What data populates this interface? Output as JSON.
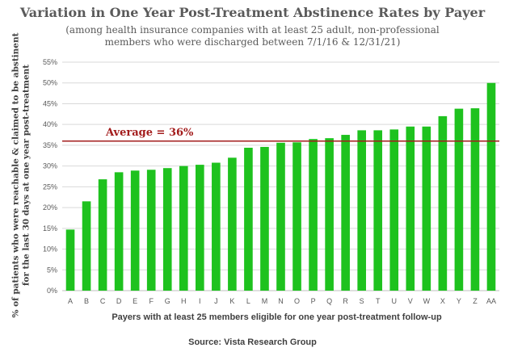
{
  "chart_data": {
    "type": "bar",
    "title": "Variation in One Year Post-Treatment Abstinence Rates by Payer",
    "subtitle_lines": [
      "(among health insurance companies with at least 25 adult, non-professional",
      "members who were discharged between 7/1/16 & 12/31/21)"
    ],
    "ylabel_lines": [
      "% of patients who were reachable & claimed to be abstinent",
      "for the last 30 days at one year post-treatment"
    ],
    "xlabel": "Payers with at least 25 members eligible for one year post-treatment follow-up",
    "source": "Source:  Vista Research Group",
    "categories": [
      "A",
      "B",
      "C",
      "D",
      "E",
      "F",
      "G",
      "H",
      "I",
      "J",
      "K",
      "L",
      "M",
      "N",
      "O",
      "P",
      "Q",
      "R",
      "S",
      "T",
      "U",
      "V",
      "W",
      "X",
      "Y",
      "Z",
      "AA"
    ],
    "values": [
      14.7,
      21.5,
      26.8,
      28.5,
      28.9,
      29.1,
      29.5,
      30.0,
      30.3,
      30.8,
      32.0,
      34.4,
      34.6,
      35.6,
      35.7,
      36.5,
      36.7,
      37.5,
      38.6,
      38.6,
      38.8,
      39.5,
      39.5,
      42.0,
      43.8,
      43.9,
      50.0
    ],
    "ylim": [
      0,
      55
    ],
    "yticks": [
      "0%",
      "5%",
      "10%",
      "15%",
      "20%",
      "25%",
      "30%",
      "35%",
      "40%",
      "45%",
      "50%",
      "55%"
    ],
    "grid": true,
    "bar_color": "#1ec21e",
    "average": {
      "label": "Average = 36%",
      "value": 36,
      "color": "#a31c1c"
    }
  }
}
